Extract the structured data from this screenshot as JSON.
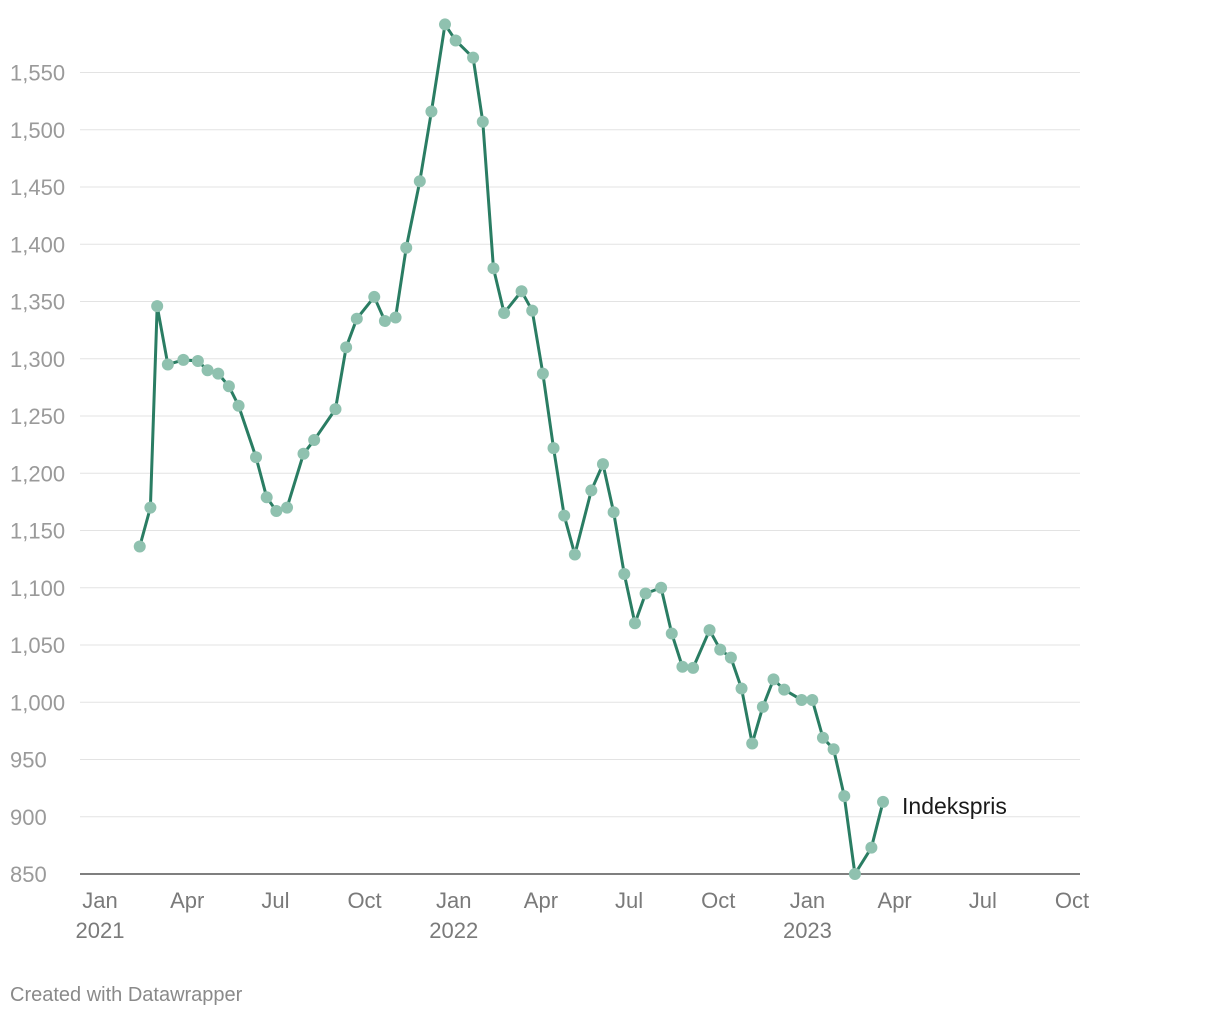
{
  "chart_data": {
    "type": "line",
    "title": "",
    "xlabel": "",
    "ylabel": "",
    "ylim": [
      850,
      1595
    ],
    "yticks": [
      850,
      900,
      950,
      1000,
      1050,
      1100,
      1150,
      1200,
      1250,
      1300,
      1350,
      1400,
      1450,
      1500,
      1550
    ],
    "ytick_labels": [
      "850",
      "900",
      "950",
      "1,000",
      "1,050",
      "1,100",
      "1,150",
      "1,200",
      "1,250",
      "1,300",
      "1,350",
      "1,400",
      "1,450",
      "1,500",
      "1,550"
    ],
    "xlim": [
      "2021-01-01",
      "2023-10-01"
    ],
    "xticks": [
      {
        "date": "2021-01-01",
        "label": "Jan",
        "year": "2021"
      },
      {
        "date": "2021-04-01",
        "label": "Apr",
        "year": ""
      },
      {
        "date": "2021-07-01",
        "label": "Jul",
        "year": ""
      },
      {
        "date": "2021-10-01",
        "label": "Oct",
        "year": ""
      },
      {
        "date": "2022-01-01",
        "label": "Jan",
        "year": "2022"
      },
      {
        "date": "2022-04-01",
        "label": "Apr",
        "year": ""
      },
      {
        "date": "2022-07-01",
        "label": "Jul",
        "year": ""
      },
      {
        "date": "2022-10-01",
        "label": "Oct",
        "year": ""
      },
      {
        "date": "2023-01-01",
        "label": "Jan",
        "year": "2023"
      },
      {
        "date": "2023-04-01",
        "label": "Apr",
        "year": ""
      },
      {
        "date": "2023-07-01",
        "label": "Jul",
        "year": ""
      },
      {
        "date": "2023-10-01",
        "label": "Oct",
        "year": ""
      }
    ],
    "grid": true,
    "series": [
      {
        "name": "Indekspris",
        "color": "#2a7d63",
        "marker_color": "#8fc1af",
        "points": [
          [
            "2021-02-11",
            1136
          ],
          [
            "2021-02-22",
            1170
          ],
          [
            "2021-03-01",
            1346
          ],
          [
            "2021-03-12",
            1295
          ],
          [
            "2021-03-28",
            1299
          ],
          [
            "2021-04-12",
            1298
          ],
          [
            "2021-04-22",
            1290
          ],
          [
            "2021-05-03",
            1287
          ],
          [
            "2021-05-14",
            1276
          ],
          [
            "2021-05-24",
            1259
          ],
          [
            "2021-06-11",
            1214
          ],
          [
            "2021-06-22",
            1179
          ],
          [
            "2021-07-02",
            1167
          ],
          [
            "2021-07-13",
            1170
          ],
          [
            "2021-07-30",
            1217
          ],
          [
            "2021-08-10",
            1229
          ],
          [
            "2021-09-01",
            1256
          ],
          [
            "2021-09-12",
            1310
          ],
          [
            "2021-09-23",
            1335
          ],
          [
            "2021-10-11",
            1354
          ],
          [
            "2021-10-22",
            1333
          ],
          [
            "2021-11-02",
            1336
          ],
          [
            "2021-11-13",
            1397
          ],
          [
            "2021-11-27",
            1455
          ],
          [
            "2021-12-09",
            1516
          ],
          [
            "2021-12-23",
            1592
          ],
          [
            "2022-01-03",
            1578
          ],
          [
            "2022-01-21",
            1563
          ],
          [
            "2022-01-31",
            1507
          ],
          [
            "2022-02-11",
            1379
          ],
          [
            "2022-02-22",
            1340
          ],
          [
            "2022-03-12",
            1359
          ],
          [
            "2022-03-23",
            1342
          ],
          [
            "2022-04-03",
            1287
          ],
          [
            "2022-04-14",
            1222
          ],
          [
            "2022-04-25",
            1163
          ],
          [
            "2022-05-06",
            1129
          ],
          [
            "2022-05-23",
            1185
          ],
          [
            "2022-06-04",
            1208
          ],
          [
            "2022-06-15",
            1166
          ],
          [
            "2022-06-26",
            1112
          ],
          [
            "2022-07-07",
            1069
          ],
          [
            "2022-07-18",
            1095
          ],
          [
            "2022-08-03",
            1100
          ],
          [
            "2022-08-14",
            1060
          ],
          [
            "2022-08-25",
            1031
          ],
          [
            "2022-09-05",
            1030
          ],
          [
            "2022-09-22",
            1063
          ],
          [
            "2022-10-03",
            1046
          ],
          [
            "2022-10-14",
            1039
          ],
          [
            "2022-10-25",
            1012
          ],
          [
            "2022-11-05",
            964
          ],
          [
            "2022-11-16",
            996
          ],
          [
            "2022-11-27",
            1020
          ],
          [
            "2022-12-08",
            1011
          ],
          [
            "2022-12-26",
            1002
          ],
          [
            "2023-01-06",
            1002
          ],
          [
            "2023-01-17",
            969
          ],
          [
            "2023-01-28",
            959
          ],
          [
            "2023-02-08",
            918
          ],
          [
            "2023-02-19",
            850
          ],
          [
            "2023-03-08",
            873
          ],
          [
            "2023-03-20",
            913
          ]
        ]
      }
    ]
  },
  "footer": {
    "credit": "Created with Datawrapper"
  }
}
